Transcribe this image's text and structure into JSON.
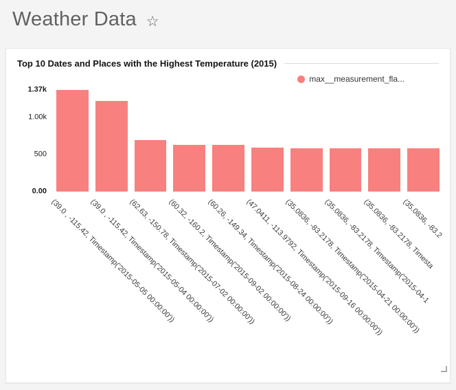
{
  "header": {
    "title": "Weather Data",
    "favorite_icon": "☆"
  },
  "chart_data": {
    "type": "bar",
    "title": "Top 10 Dates and Places with the Highest Temperature (2015)",
    "legend": [
      {
        "label": "max__measurement_fla...",
        "color": "#f8807e"
      }
    ],
    "legend_position": "top-right",
    "categories": [
      "(39.0 , -115.42, Timestamp('2015-05-05 00:00:00'))",
      "(39.0 , -115.42, Timestamp('2015-05-04 00:00:00'))",
      "(62.63, -150.78, Timestamp('2015-07-02 00:00:00'))",
      "(60.32, -160.2, Timestamp('2015-09-02 00:00:00'))",
      "(60.26, -149.34, Timestamp('2015-08-24 00:00:00'))",
      "(47.0411, -113.9792, Timestamp('2015-09-16 00:00:00'))",
      "(35.0836, -83.2178, Timestamp('2015-04-21 00:00:00'))",
      "(35.0836, -83.2178, Timestamp('2015-04-1",
      "(35.0836, -83.2178, Timesta",
      "(35.0836, -83.2"
    ],
    "values": [
      1370,
      1220,
      690,
      630,
      625,
      590,
      585,
      585,
      585,
      585
    ],
    "bar_color": "#f8807e",
    "xlabel": "",
    "ylabel": "",
    "ylim": [
      0,
      1370
    ],
    "y_ticks": [
      {
        "value": 0,
        "label": "0.00"
      },
      {
        "value": 500,
        "label": "500"
      },
      {
        "value": 1000,
        "label": "1.00k"
      },
      {
        "value": 1370,
        "label": "1.37k"
      }
    ],
    "x_label_rotation": 45,
    "grid": false
  }
}
